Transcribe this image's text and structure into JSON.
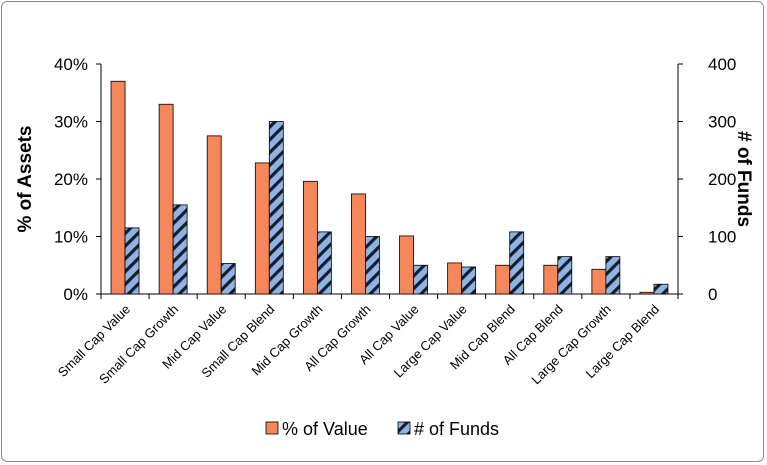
{
  "chart_data": {
    "type": "bar",
    "categories": [
      "Small Cap Value",
      "Small Cap Growth",
      "Mid Cap Value",
      "Small Cap Blend",
      "Mid Cap Growth",
      "All Cap Growth",
      "All Cap Value",
      "Large Cap Value",
      "Mid Cap Blend",
      "All Cap Blend",
      "Large Cap Growth",
      "Large Cap Blend"
    ],
    "series": [
      {
        "name": "% of Value",
        "axis": "left",
        "color": "#f5875a",
        "values": [
          37,
          33,
          27.5,
          22.8,
          19.6,
          17.4,
          10.1,
          5.4,
          5.0,
          5.0,
          4.3,
          0.3
        ]
      },
      {
        "name": "# of Funds",
        "axis": "right",
        "color": "#8fb4e3",
        "pattern": "diagonal-stripes",
        "values": [
          115,
          155,
          53,
          300,
          108,
          100,
          50,
          47,
          108,
          65,
          65,
          17
        ]
      }
    ],
    "ylabel": "% of Assets",
    "y2label": "# of Funds",
    "ylim": [
      0,
      40
    ],
    "y2lim": [
      0,
      400
    ],
    "yticks": [
      "0%",
      "10%",
      "20%",
      "30%",
      "40%"
    ],
    "y2ticks": [
      "0",
      "100",
      "200",
      "300",
      "400"
    ],
    "grid": false,
    "legend": "bottom"
  }
}
